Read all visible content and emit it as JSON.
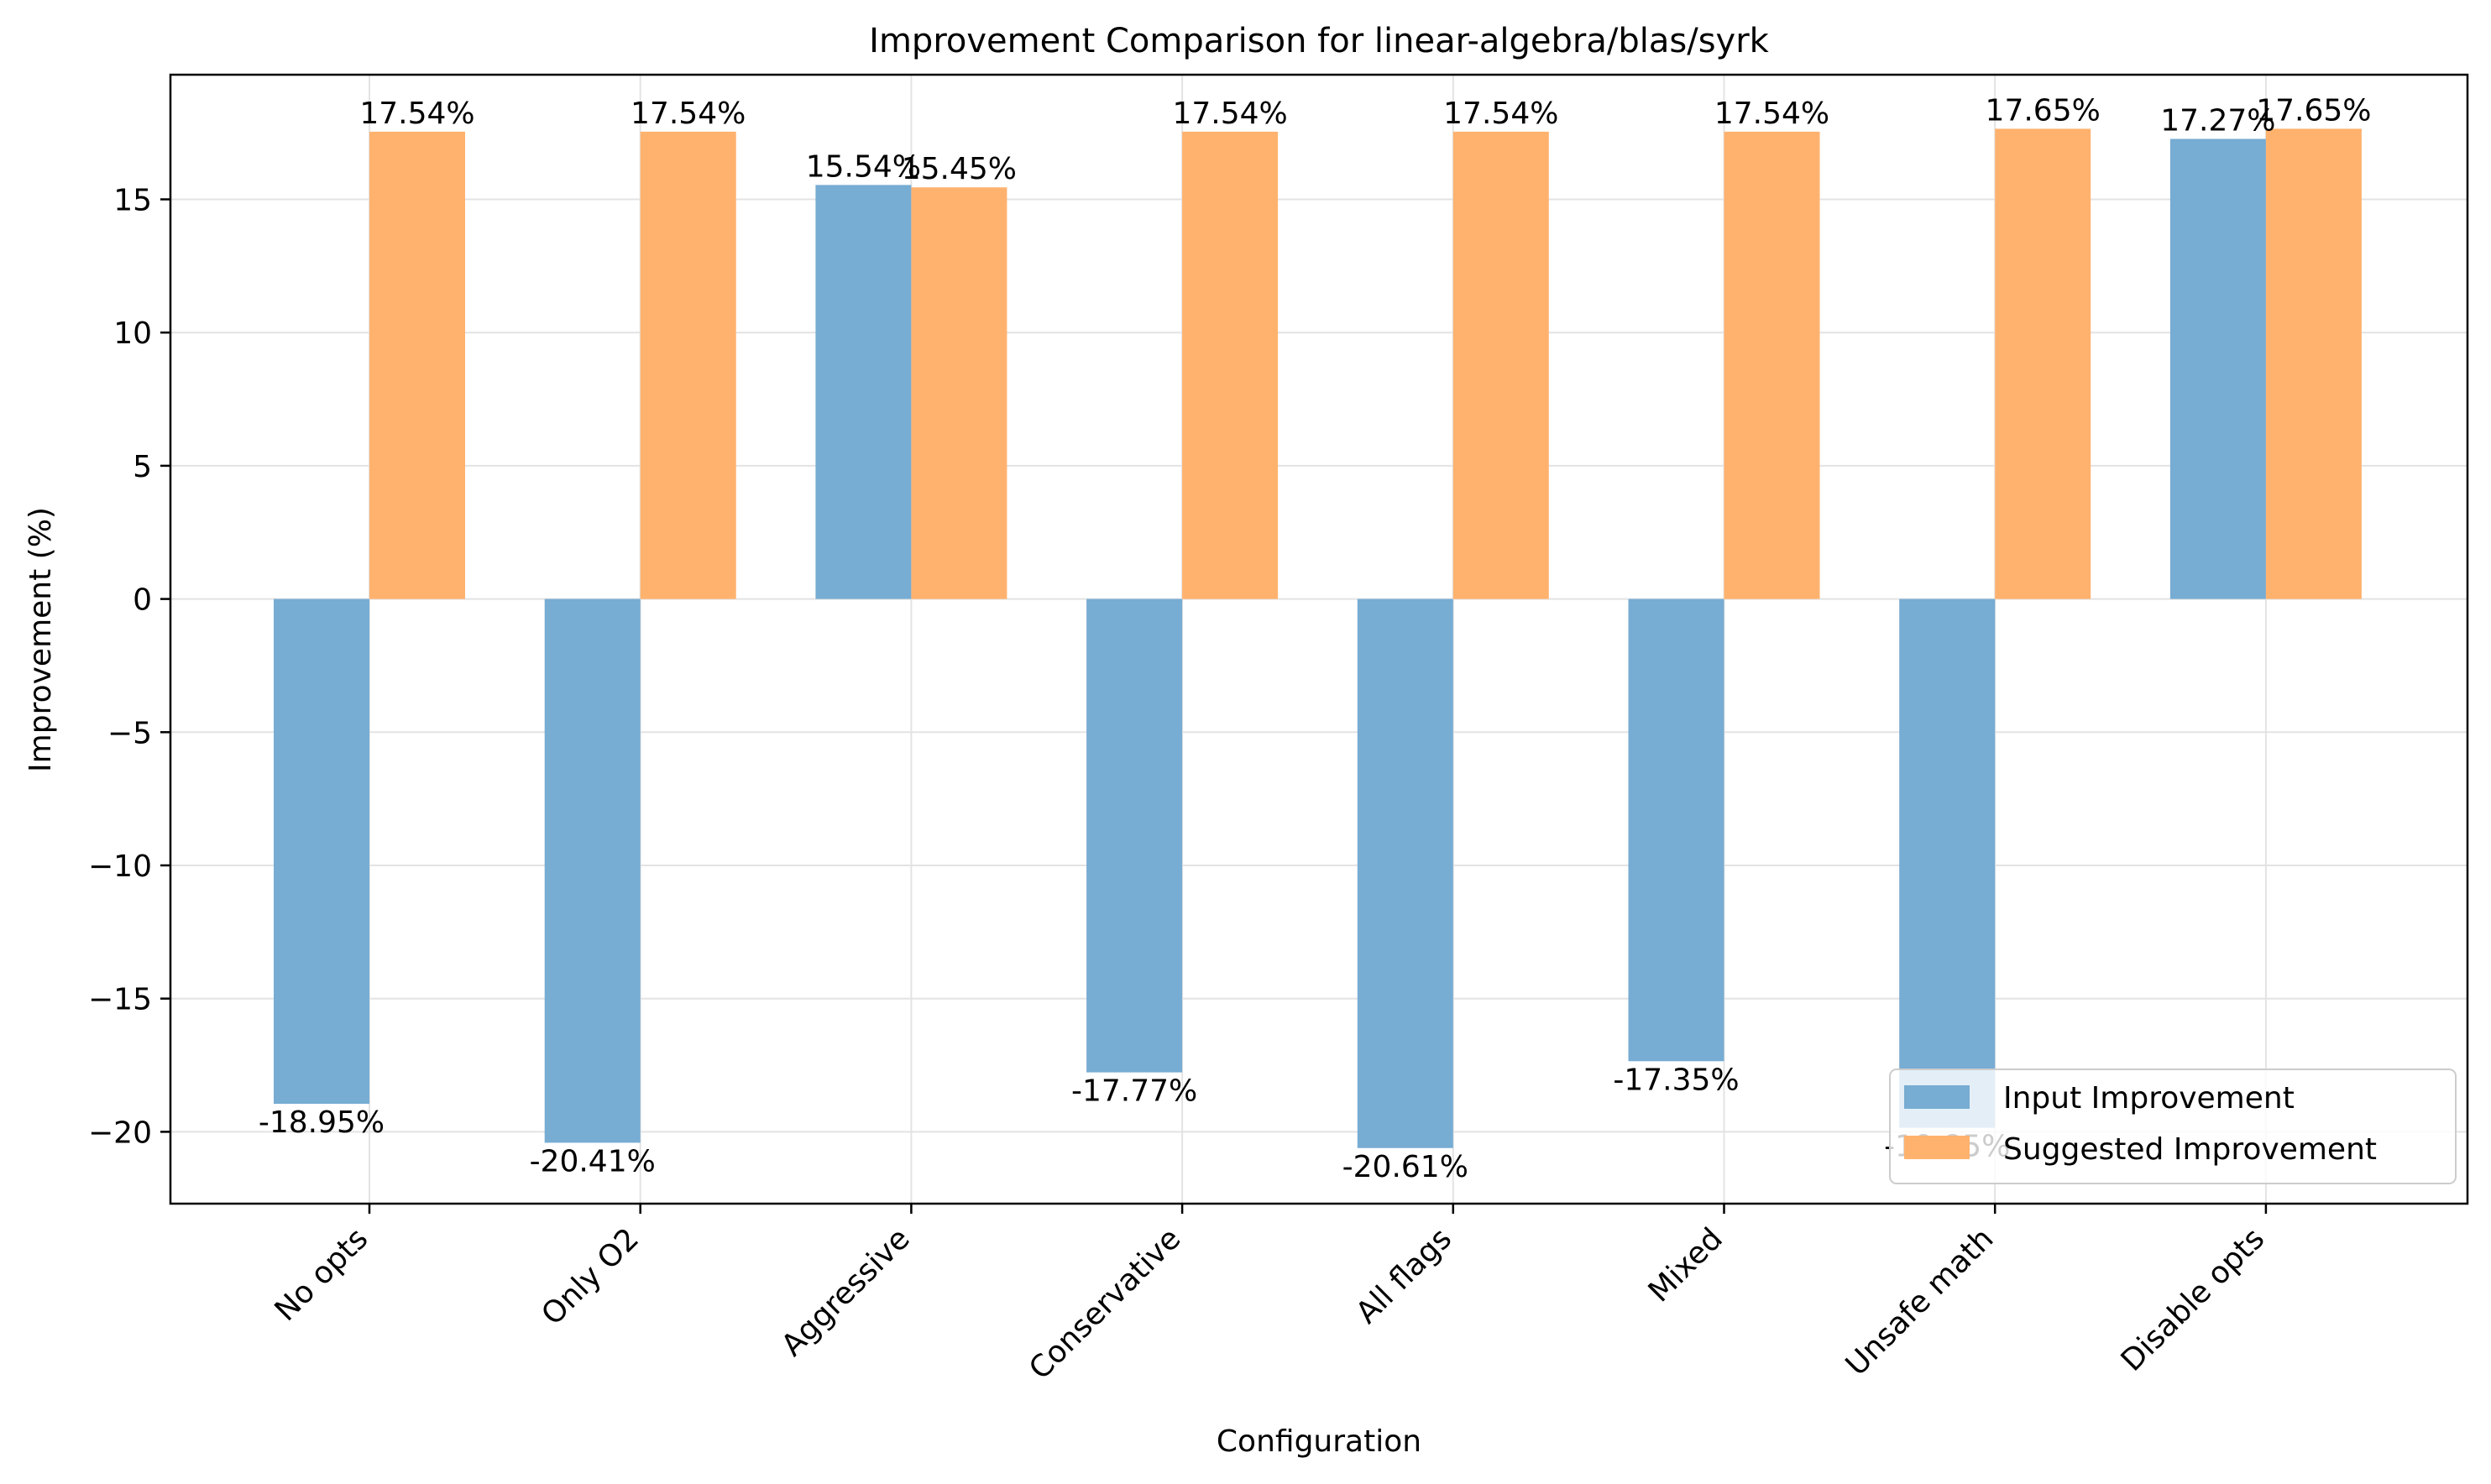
{
  "chart_data": {
    "type": "bar",
    "title": "Improvement Comparison for linear-algebra/blas/syrk",
    "xlabel": "Configuration",
    "ylabel": "Improvement (%)",
    "categories": [
      "No opts",
      "Only O2",
      "Aggressive",
      "Conservative",
      "All flags",
      "Mixed",
      "Unsafe math",
      "Disable opts"
    ],
    "series": [
      {
        "name": "Input Improvement",
        "color": "#77acd3",
        "values": [
          -18.95,
          -20.41,
          15.54,
          -17.77,
          -20.61,
          -17.35,
          -19.85,
          17.27
        ],
        "labels": [
          "-18.95%",
          "-20.41%",
          "15.54%",
          "-17.77%",
          "-20.61%",
          "-17.35%",
          "-19.85%",
          "17.27%"
        ]
      },
      {
        "name": "Suggested Improvement",
        "color": "#ffb26e",
        "values": [
          17.54,
          17.54,
          15.45,
          17.54,
          17.54,
          17.54,
          17.65,
          17.65
        ],
        "labels": [
          "17.54%",
          "17.54%",
          "15.45%",
          "17.54%",
          "17.54%",
          "17.54%",
          "17.65%",
          "17.65%"
        ]
      }
    ],
    "ylim": [
      -22.6,
      19.6
    ],
    "yticks": [
      -20,
      -15,
      -10,
      -5,
      0,
      5,
      10,
      15
    ],
    "ytick_labels": [
      "−20",
      "−15",
      "−10",
      "−5",
      "0",
      "5",
      "10",
      "15"
    ],
    "grid": true,
    "legend": "lower-right"
  }
}
